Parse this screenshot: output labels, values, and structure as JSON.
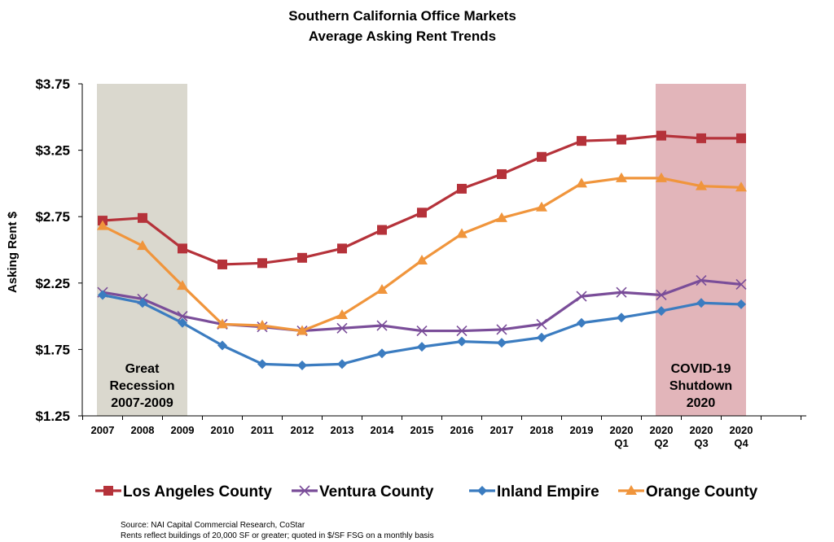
{
  "chart_data": {
    "type": "line",
    "title": "Southern California Office Markets",
    "subtitle": "Average Asking Rent Trends",
    "xlabel": "",
    "ylabel": "Asking Rent $",
    "ylim": [
      1.25,
      3.75
    ],
    "yticks": [
      "$1.25",
      "$1.75",
      "$2.25",
      "$2.75",
      "$3.25",
      "$3.75"
    ],
    "yticks_values": [
      1.25,
      1.75,
      2.25,
      2.75,
      3.25,
      3.75
    ],
    "grid": false,
    "legend_position": "bottom",
    "categories": [
      [
        "2007"
      ],
      [
        "2008"
      ],
      [
        "2009"
      ],
      [
        "2010"
      ],
      [
        "2011"
      ],
      [
        "2012"
      ],
      [
        "2013"
      ],
      [
        "2014"
      ],
      [
        "2015"
      ],
      [
        "2016"
      ],
      [
        "2017"
      ],
      [
        "2018"
      ],
      [
        "2019"
      ],
      [
        "2020",
        "Q1"
      ],
      [
        "2020",
        "Q2"
      ],
      [
        "2020",
        "Q3"
      ],
      [
        "2020",
        "Q4"
      ]
    ],
    "series": [
      {
        "name": "Los Angeles County",
        "color": "#B5323A",
        "marker": "square",
        "values": [
          2.72,
          2.74,
          2.51,
          2.39,
          2.4,
          2.44,
          2.51,
          2.65,
          2.78,
          2.96,
          3.07,
          3.2,
          3.32,
          3.33,
          3.36,
          3.34,
          3.34
        ]
      },
      {
        "name": "Ventura County",
        "color": "#7A4D99",
        "marker": "x",
        "values": [
          2.18,
          2.13,
          2.0,
          1.94,
          1.92,
          1.89,
          1.91,
          1.93,
          1.89,
          1.89,
          1.9,
          1.94,
          2.15,
          2.18,
          2.16,
          2.27,
          2.24
        ]
      },
      {
        "name": "Inland Empire",
        "color": "#3B7CC0",
        "marker": "diamond",
        "values": [
          2.16,
          2.1,
          1.95,
          1.78,
          1.64,
          1.63,
          1.64,
          1.72,
          1.77,
          1.81,
          1.8,
          1.84,
          1.95,
          1.99,
          2.04,
          2.1,
          2.09
        ]
      },
      {
        "name": "Orange County",
        "color": "#F0953C",
        "marker": "triangle",
        "values": [
          2.68,
          2.53,
          2.23,
          1.94,
          1.93,
          1.89,
          2.01,
          2.2,
          2.42,
          2.62,
          2.74,
          2.82,
          3.0,
          3.04,
          3.04,
          2.98,
          2.97
        ]
      }
    ],
    "shaded_regions": [
      {
        "label_lines": [
          "Great",
          "Recession",
          "2007-2009"
        ],
        "from_category": 0,
        "to_category": 2,
        "color": "#DAD8CE"
      },
      {
        "label_lines": [
          "COVID-19",
          "Shutdown",
          "2020"
        ],
        "from_category": 14,
        "to_category": 16,
        "color": "#E2B5BA"
      }
    ]
  },
  "source_lines": [
    "Source: NAI Capital Commercial Research, CoStar",
    "Rents reflect buildings of 20,000 SF or greater; quoted in $/SF FSG on a monthly basis"
  ]
}
